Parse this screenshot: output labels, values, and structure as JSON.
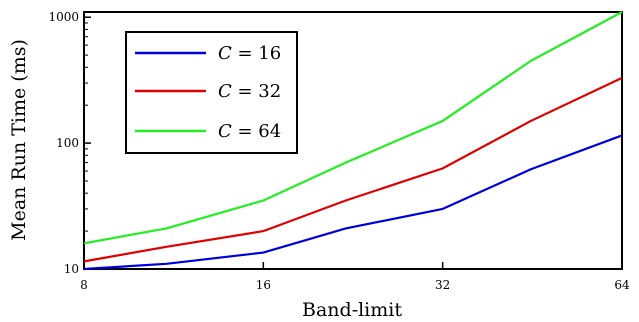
{
  "chart_data": {
    "type": "line",
    "title": "",
    "xlabel": "Band-limit",
    "ylabel": "Mean Run Time (ms)",
    "x_scale": "log2",
    "y_scale": "log10",
    "xlim": [
      8,
      64
    ],
    "ylim": [
      10,
      1100
    ],
    "x_ticks": [
      8,
      16,
      32,
      64
    ],
    "y_ticks": [
      10,
      100,
      1000
    ],
    "grid": false,
    "legend_position": "top-left",
    "series": [
      {
        "name": "C = 16",
        "color": "#0000dd",
        "x": [
          8,
          11,
          16,
          22,
          32,
          45,
          64
        ],
        "y": [
          10,
          11,
          13.5,
          21,
          30,
          62,
          115
        ]
      },
      {
        "name": "C = 32",
        "color": "#e00000",
        "x": [
          8,
          11,
          16,
          22,
          32,
          45,
          64
        ],
        "y": [
          11.5,
          15,
          20,
          35,
          63,
          150,
          330
        ]
      },
      {
        "name": "C = 64",
        "color": "#22ee22",
        "x": [
          8,
          11,
          16,
          22,
          32,
          45,
          64
        ],
        "y": [
          16,
          21,
          35,
          70,
          150,
          450,
          1100
        ]
      }
    ],
    "legend": {
      "items": [
        {
          "symbol": "C",
          "eq": "= 16",
          "color": "#0000dd"
        },
        {
          "symbol": "C",
          "eq": "= 32",
          "color": "#e00000"
        },
        {
          "symbol": "C",
          "eq": "= 64",
          "color": "#22ee22"
        }
      ]
    }
  }
}
